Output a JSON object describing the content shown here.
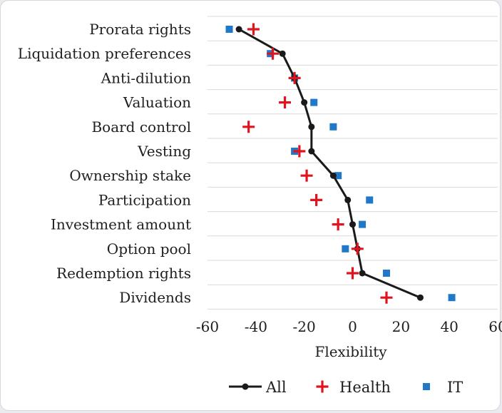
{
  "chart_data": {
    "type": "scatter",
    "title": "",
    "xlabel": "Flexibility",
    "ylabel": "",
    "xlim": [
      -60,
      60
    ],
    "x_ticks": [
      "-60",
      "-40",
      "-20",
      "0",
      "20",
      "40",
      "60"
    ],
    "x_tick_values": [
      -60,
      -40,
      -20,
      0,
      20,
      40,
      60
    ],
    "grid": "horizontal",
    "legend_position": "bottom",
    "categories": [
      "Prorata rights",
      "Liquidation preferences",
      "Anti-dilution",
      "Valuation",
      "Board control",
      "Vesting",
      "Ownership stake",
      "Participation",
      "Investment amount",
      "Option pool",
      "Redemption rights",
      "Dividends"
    ],
    "series": [
      {
        "name": "All",
        "marker": "line-dot",
        "color": "#1a1a1a",
        "values": [
          -47,
          -29,
          -24,
          -20,
          -17,
          -17,
          -8,
          -2,
          0,
          2,
          4,
          28
        ]
      },
      {
        "name": "Health",
        "marker": "plus",
        "color": "#e0141e",
        "values": [
          -41,
          -33,
          -24,
          -28,
          -43,
          -22,
          -19,
          -15,
          -6,
          2,
          0,
          14
        ]
      },
      {
        "name": "IT",
        "marker": "square",
        "color": "#1f78c8",
        "values": [
          -51,
          -34,
          -24,
          -16,
          -8,
          -24,
          -6,
          7,
          4,
          -3,
          14,
          41
        ]
      }
    ]
  }
}
